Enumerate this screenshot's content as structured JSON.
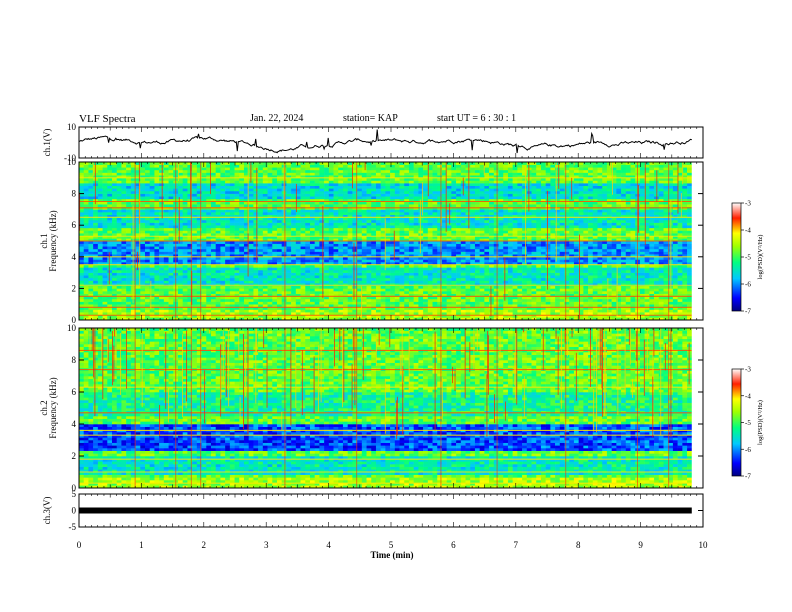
{
  "header": {
    "title": "VLF Spectra",
    "date": "Jan. 22, 2024",
    "station": "station= KAP",
    "start": "start  UT =  6 : 30 : 1"
  },
  "chart_data": [
    {
      "type": "line",
      "panel": "ch1-waveform",
      "ylabel": "ch.1(V)",
      "ylim": [
        -10,
        10
      ],
      "yticks": [
        "10",
        "-10"
      ],
      "xlim": [
        0,
        10
      ],
      "description_series": "noisy waveform around 0 V with excursions to about ±8 V"
    },
    {
      "type": "heatmap",
      "panel": "ch1-spectrogram",
      "ylabel": "ch.1 Frequency (kHz)",
      "ylim": [
        0,
        10
      ],
      "yticks": [
        "0",
        "2",
        "4",
        "6",
        "8",
        "10"
      ],
      "xlim": [
        0,
        10
      ],
      "data_end_min": 9.82,
      "colorbar": {
        "label": "log(PSD)(V²/Hz)",
        "range": [
          -7,
          -3
        ],
        "ticks": [
          "-3",
          "-4",
          "-5",
          "-6",
          "-7"
        ]
      },
      "bands_kHz": [
        {
          "range": [
            3.5,
            5.0
          ],
          "level": -6.0
        },
        {
          "range": [
            2.2,
            3.3
          ],
          "level": -5.5
        },
        {
          "range": [
            5.8,
            7.0
          ],
          "level": -5.5
        },
        {
          "range": [
            7.6,
            8.6
          ],
          "level": -5.6
        }
      ],
      "lines_kHz": [
        0.3,
        0.8,
        1.5,
        2.2,
        3.5,
        4.0,
        5.0,
        5.3,
        6.5,
        7.1,
        7.5,
        9.0
      ]
    },
    {
      "type": "heatmap",
      "panel": "ch2-spectrogram",
      "ylabel": "ch.2 Frequency (kHz)",
      "ylim": [
        0,
        10
      ],
      "yticks": [
        "0",
        "2",
        "4",
        "6",
        "8",
        "10"
      ],
      "xlim": [
        0,
        10
      ],
      "data_end_min": 9.82,
      "colorbar": {
        "label": "log(PSD)(V²/Hz)",
        "range": [
          -7,
          -3
        ],
        "ticks": [
          "-3",
          "-4",
          "-5",
          "-6",
          "-7"
        ]
      },
      "bands_kHz": [
        {
          "range": [
            2.3,
            4.0
          ],
          "level": -6.3
        },
        {
          "range": [
            0.9,
            2.0
          ],
          "level": -5.5
        },
        {
          "range": [
            4.5,
            6.0
          ],
          "level": -5.3
        }
      ],
      "lines_kHz": [
        0.3,
        1.0,
        1.8,
        3.3,
        3.6,
        4.7,
        6.3,
        7.4,
        8.6
      ]
    },
    {
      "type": "line",
      "panel": "ch3-waveform",
      "ylabel": "ch.3(V)",
      "ylim": [
        -5,
        5
      ],
      "yticks": [
        "5",
        "0",
        "-5"
      ],
      "xlim": [
        0,
        10
      ],
      "xlabel": "Time (min)",
      "xticks": [
        "0",
        "1",
        "2",
        "3",
        "4",
        "5",
        "6",
        "7",
        "8",
        "9",
        "10"
      ],
      "constant_value": 0
    }
  ]
}
